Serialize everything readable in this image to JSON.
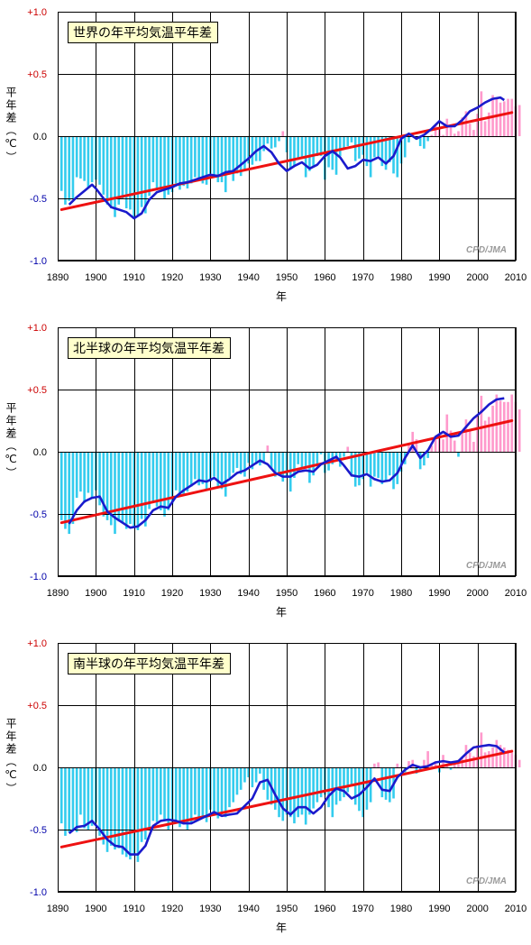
{
  "chart_data": [
    {
      "type": "bar",
      "title": "世界の年平均気温平年差",
      "ylabel": "平年差（℃）",
      "xlabel": "年",
      "credit": "CPD/JMA",
      "ylim": [
        -1.0,
        1.0
      ],
      "xlim": [
        1890,
        2010
      ],
      "yticks": [
        "+1.0",
        "+0.5",
        "0.0",
        "-0.5",
        "-1.0"
      ],
      "xticks": [
        "1890",
        "1900",
        "1910",
        "1920",
        "1930",
        "1940",
        "1950",
        "1960",
        "1970",
        "1980",
        "1990",
        "2000",
        "2010"
      ],
      "grid": true,
      "colors": {
        "negative_bar": "#33ccee",
        "positive_bar": "#ff99cc",
        "running_mean": "#1a1acc",
        "trend": "#ee1111",
        "title_box": "#ffffcc",
        "positive_tick": "#cc0000",
        "negative_tick": "#0000aa"
      },
      "trend": {
        "x": [
          1891,
          2009
        ],
        "y": [
          -0.59,
          0.19
        ]
      },
      "running_mean": {
        "x": [
          1893,
          1895,
          1897,
          1899,
          1900,
          1902,
          1904,
          1906,
          1908,
          1910,
          1912,
          1914,
          1916,
          1918,
          1920,
          1922,
          1924,
          1926,
          1928,
          1930,
          1932,
          1934,
          1936,
          1938,
          1940,
          1942,
          1944,
          1946,
          1948,
          1950,
          1952,
          1954,
          1956,
          1958,
          1960,
          1962,
          1964,
          1966,
          1968,
          1970,
          1972,
          1974,
          1976,
          1978,
          1980,
          1982,
          1984,
          1986,
          1988,
          1990,
          1992,
          1994,
          1996,
          1998,
          2000,
          2002,
          2004,
          2006,
          2007
        ],
        "y": [
          -0.55,
          -0.49,
          -0.44,
          -0.39,
          -0.42,
          -0.5,
          -0.57,
          -0.59,
          -0.61,
          -0.66,
          -0.62,
          -0.51,
          -0.45,
          -0.43,
          -0.41,
          -0.38,
          -0.37,
          -0.35,
          -0.33,
          -0.31,
          -0.32,
          -0.29,
          -0.28,
          -0.23,
          -0.18,
          -0.12,
          -0.08,
          -0.13,
          -0.22,
          -0.28,
          -0.24,
          -0.21,
          -0.26,
          -0.23,
          -0.16,
          -0.12,
          -0.17,
          -0.26,
          -0.24,
          -0.19,
          -0.2,
          -0.17,
          -0.22,
          -0.16,
          -0.02,
          0.02,
          -0.02,
          0.01,
          0.06,
          0.12,
          0.08,
          0.08,
          0.13,
          0.2,
          0.23,
          0.27,
          0.3,
          0.31,
          0.29
        ]
      },
      "years_start": 1891,
      "values": [
        -0.44,
        -0.55,
        -0.52,
        -0.5,
        -0.33,
        -0.34,
        -0.36,
        -0.41,
        -0.37,
        -0.35,
        -0.39,
        -0.47,
        -0.55,
        -0.58,
        -0.65,
        -0.55,
        -0.5,
        -0.58,
        -0.59,
        -0.65,
        -0.64,
        -0.57,
        -0.62,
        -0.48,
        -0.37,
        -0.42,
        -0.43,
        -0.5,
        -0.47,
        -0.45,
        -0.38,
        -0.43,
        -0.4,
        -0.42,
        -0.38,
        -0.33,
        -0.35,
        -0.38,
        -0.39,
        -0.3,
        -0.33,
        -0.37,
        -0.37,
        -0.45,
        -0.31,
        -0.36,
        -0.3,
        -0.32,
        -0.28,
        -0.22,
        -0.23,
        -0.2,
        -0.2,
        -0.12,
        -0.06,
        -0.1,
        -0.09,
        -0.04,
        0.04,
        -0.13,
        -0.26,
        -0.24,
        -0.19,
        -0.18,
        -0.33,
        -0.28,
        -0.25,
        -0.16,
        -0.16,
        -0.35,
        -0.25,
        -0.27,
        -0.31,
        -0.16,
        -0.11,
        -0.08,
        -0.05,
        -0.2,
        -0.18,
        -0.15,
        -0.24,
        -0.33,
        -0.17,
        -0.16,
        -0.24,
        -0.27,
        -0.21,
        -0.3,
        -0.33,
        -0.22,
        -0.17,
        -0.05,
        0.02,
        -0.03,
        -0.08,
        -0.1,
        -0.04,
        0.01,
        0.09,
        0.07,
        0.01,
        0.14,
        0.08,
        0.02,
        0.04,
        0.15,
        0.2,
        0.1,
        0.05,
        0.18,
        0.36,
        0.12,
        0.19,
        0.33,
        0.3,
        0.27,
        0.28,
        0.3,
        0.3,
        0.24,
        0.25
      ]
    },
    {
      "type": "bar",
      "title": "北半球の年平均気温平年差",
      "ylabel": "平年差（℃）",
      "xlabel": "年",
      "credit": "CPD/JMA",
      "ylim": [
        -1.0,
        1.0
      ],
      "xlim": [
        1890,
        2010
      ],
      "yticks": [
        "+1.0",
        "+0.5",
        "0.0",
        "-0.5",
        "-1.0"
      ],
      "xticks": [
        "1890",
        "1900",
        "1910",
        "1920",
        "1930",
        "1940",
        "1950",
        "1960",
        "1970",
        "1980",
        "1990",
        "2000",
        "2010"
      ],
      "grid": true,
      "colors": {
        "negative_bar": "#33ccee",
        "positive_bar": "#ff99cc",
        "running_mean": "#1a1acc",
        "trend": "#ee1111",
        "title_box": "#ffffcc",
        "positive_tick": "#cc0000",
        "negative_tick": "#0000aa"
      },
      "trend": {
        "x": [
          1891,
          2009
        ],
        "y": [
          -0.57,
          0.25
        ]
      },
      "running_mean": {
        "x": [
          1893,
          1895,
          1897,
          1899,
          1901,
          1903,
          1905,
          1907,
          1909,
          1911,
          1913,
          1915,
          1917,
          1919,
          1921,
          1923,
          1925,
          1927,
          1929,
          1931,
          1933,
          1935,
          1937,
          1939,
          1941,
          1943,
          1945,
          1947,
          1949,
          1951,
          1953,
          1955,
          1957,
          1959,
          1961,
          1963,
          1965,
          1967,
          1969,
          1971,
          1973,
          1975,
          1977,
          1979,
          1981,
          1983,
          1985,
          1987,
          1989,
          1991,
          1993,
          1995,
          1997,
          1999,
          2001,
          2003,
          2005,
          2007
        ],
        "y": [
          -0.58,
          -0.47,
          -0.4,
          -0.37,
          -0.36,
          -0.48,
          -0.53,
          -0.57,
          -0.61,
          -0.6,
          -0.55,
          -0.47,
          -0.44,
          -0.45,
          -0.36,
          -0.31,
          -0.27,
          -0.23,
          -0.24,
          -0.21,
          -0.26,
          -0.22,
          -0.17,
          -0.15,
          -0.11,
          -0.07,
          -0.1,
          -0.17,
          -0.2,
          -0.2,
          -0.16,
          -0.15,
          -0.16,
          -0.1,
          -0.07,
          -0.04,
          -0.11,
          -0.19,
          -0.2,
          -0.18,
          -0.22,
          -0.24,
          -0.23,
          -0.17,
          -0.05,
          0.05,
          -0.05,
          0.01,
          0.12,
          0.16,
          0.12,
          0.13,
          0.2,
          0.27,
          0.32,
          0.38,
          0.42,
          0.43
        ]
      },
      "years_start": 1891,
      "values": [
        -0.55,
        -0.62,
        -0.66,
        -0.58,
        -0.37,
        -0.32,
        -0.41,
        -0.33,
        -0.37,
        -0.31,
        -0.43,
        -0.52,
        -0.55,
        -0.59,
        -0.66,
        -0.56,
        -0.57,
        -0.62,
        -0.58,
        -0.6,
        -0.63,
        -0.54,
        -0.6,
        -0.46,
        -0.4,
        -0.44,
        -0.47,
        -0.52,
        -0.47,
        -0.42,
        -0.31,
        -0.33,
        -0.35,
        -0.32,
        -0.28,
        -0.22,
        -0.27,
        -0.26,
        -0.3,
        -0.24,
        -0.2,
        -0.28,
        -0.3,
        -0.36,
        -0.21,
        -0.17,
        -0.13,
        -0.18,
        -0.2,
        -0.09,
        -0.14,
        -0.1,
        -0.11,
        -0.08,
        0.05,
        -0.13,
        -0.2,
        -0.18,
        -0.24,
        -0.2,
        -0.32,
        -0.21,
        -0.1,
        -0.13,
        -0.12,
        -0.25,
        -0.19,
        -0.11,
        -0.02,
        -0.17,
        -0.15,
        -0.1,
        -0.06,
        -0.12,
        -0.04,
        0.04,
        -0.2,
        -0.28,
        -0.27,
        -0.22,
        -0.17,
        -0.28,
        -0.2,
        -0.21,
        -0.26,
        -0.23,
        -0.19,
        -0.3,
        -0.26,
        -0.16,
        -0.1,
        0.07,
        0.16,
        0.1,
        -0.14,
        -0.11,
        -0.05,
        0.05,
        0.11,
        0.11,
        0.1,
        0.3,
        0.17,
        0.09,
        -0.04,
        0.16,
        0.26,
        0.17,
        0.08,
        0.3,
        0.45,
        0.25,
        0.28,
        0.37,
        0.46,
        0.41,
        0.4,
        0.4,
        0.46,
        0.4,
        0.34
      ]
    },
    {
      "type": "bar",
      "title": "南半球の年平均気温平年差",
      "ylabel": "平年差（℃）",
      "xlabel": "年",
      "credit": "CPD/JMA",
      "ylim": [
        -1.0,
        1.0
      ],
      "xlim": [
        1890,
        2010
      ],
      "yticks": [
        "+1.0",
        "+0.5",
        "0.0",
        "-0.5",
        "-1.0"
      ],
      "xticks": [
        "1890",
        "1900",
        "1910",
        "1920",
        "1930",
        "1940",
        "1950",
        "1960",
        "1970",
        "1980",
        "1990",
        "2000",
        "2010"
      ],
      "grid": true,
      "colors": {
        "negative_bar": "#33ccee",
        "positive_bar": "#ff99cc",
        "running_mean": "#1a1acc",
        "trend": "#ee1111",
        "title_box": "#ffffcc",
        "positive_tick": "#cc0000",
        "negative_tick": "#0000aa"
      },
      "trend": {
        "x": [
          1891,
          2009
        ],
        "y": [
          -0.64,
          0.13
        ]
      },
      "running_mean": {
        "x": [
          1893,
          1895,
          1897,
          1899,
          1901,
          1903,
          1905,
          1907,
          1909,
          1911,
          1913,
          1915,
          1917,
          1919,
          1921,
          1923,
          1925,
          1927,
          1929,
          1931,
          1933,
          1935,
          1937,
          1939,
          1941,
          1943,
          1945,
          1947,
          1949,
          1951,
          1953,
          1955,
          1957,
          1959,
          1961,
          1963,
          1965,
          1967,
          1969,
          1971,
          1973,
          1975,
          1977,
          1979,
          1981,
          1983,
          1985,
          1987,
          1989,
          1991,
          1993,
          1995,
          1997,
          1999,
          2001,
          2003,
          2005,
          2007
        ],
        "y": [
          -0.53,
          -0.48,
          -0.47,
          -0.43,
          -0.5,
          -0.58,
          -0.63,
          -0.64,
          -0.7,
          -0.7,
          -0.63,
          -0.47,
          -0.43,
          -0.42,
          -0.43,
          -0.45,
          -0.45,
          -0.42,
          -0.39,
          -0.36,
          -0.39,
          -0.38,
          -0.37,
          -0.31,
          -0.25,
          -0.12,
          -0.1,
          -0.22,
          -0.33,
          -0.38,
          -0.32,
          -0.32,
          -0.37,
          -0.32,
          -0.23,
          -0.17,
          -0.19,
          -0.25,
          -0.22,
          -0.16,
          -0.09,
          -0.18,
          -0.19,
          -0.08,
          -0.02,
          0.02,
          0.0,
          0.01,
          0.04,
          0.05,
          0.04,
          0.05,
          0.11,
          0.16,
          0.17,
          0.18,
          0.17,
          0.12
        ]
      },
      "years_start": 1891,
      "values": [
        -0.45,
        -0.55,
        -0.52,
        -0.5,
        -0.52,
        -0.38,
        -0.49,
        -0.5,
        -0.47,
        -0.44,
        -0.55,
        -0.62,
        -0.68,
        -0.63,
        -0.66,
        -0.65,
        -0.7,
        -0.72,
        -0.74,
        -0.7,
        -0.76,
        -0.6,
        -0.58,
        -0.5,
        -0.43,
        -0.44,
        -0.38,
        -0.42,
        -0.5,
        -0.44,
        -0.45,
        -0.48,
        -0.46,
        -0.5,
        -0.45,
        -0.38,
        -0.42,
        -0.4,
        -0.44,
        -0.34,
        -0.38,
        -0.41,
        -0.36,
        -0.4,
        -0.32,
        -0.28,
        -0.22,
        -0.18,
        -0.12,
        -0.08,
        -0.16,
        -0.12,
        -0.05,
        -0.18,
        -0.26,
        -0.3,
        -0.34,
        -0.4,
        -0.43,
        -0.38,
        -0.4,
        -0.45,
        -0.4,
        -0.38,
        -0.46,
        -0.38,
        -0.33,
        -0.28,
        -0.24,
        -0.22,
        -0.32,
        -0.4,
        -0.3,
        -0.27,
        -0.24,
        -0.2,
        -0.15,
        -0.3,
        -0.35,
        -0.4,
        -0.34,
        -0.28,
        0.03,
        0.04,
        -0.24,
        -0.26,
        -0.28,
        -0.25,
        0.03,
        0.01,
        -0.04,
        0.05,
        0.06,
        -0.05,
        -0.02,
        0.06,
        0.13,
        0.03,
        0.05,
        -0.04,
        0.1,
        0.02,
        -0.02,
        0.04,
        0.06,
        0.08,
        0.18,
        0.12,
        0.09,
        0.18,
        0.28,
        0.12,
        0.13,
        0.16,
        0.22,
        0.18,
        0.16,
        0.14,
        0.12,
        0.1,
        0.06
      ]
    }
  ]
}
